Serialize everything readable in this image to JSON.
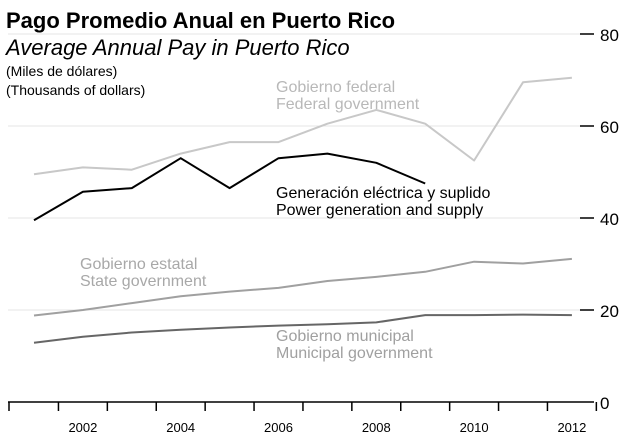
{
  "chart_data": {
    "type": "line",
    "title": "Pago Promedio Anual en Puerto Rico",
    "subtitle": "Average Annual Pay in Puerto Rico",
    "units": [
      "(Miles de dólares)",
      "(Thousands of dollars)"
    ],
    "x": [
      2001,
      2002,
      2003,
      2004,
      2005,
      2006,
      2007,
      2008,
      2009,
      2010,
      2011,
      2012
    ],
    "x_tick_labels": [
      "2002",
      "2004",
      "2006",
      "2008",
      "2010",
      "2012"
    ],
    "y_tick_labels": [
      "0",
      "20",
      "40",
      "60",
      "80"
    ],
    "ylim": [
      0,
      80
    ],
    "grid": true,
    "series": [
      {
        "name": "Gobierno federal",
        "name_en": "Federal government",
        "color": "#c8c8c8",
        "values": [
          49.5,
          51,
          50.5,
          54,
          56.5,
          56.5,
          60.5,
          63.5,
          60.5,
          52.5,
          69.5,
          70.5
        ]
      },
      {
        "name": "Generación eléctrica y suplido",
        "name_en": "Power generation and supply",
        "color": "#000000",
        "values": [
          39.5,
          45.7,
          46.5,
          53,
          46.5,
          53,
          54,
          52,
          47.5,
          null,
          null,
          null
        ]
      },
      {
        "name": "Gobierno estatal",
        "name_en": "State government",
        "color": "#a0a0a0",
        "values": [
          18.8,
          20,
          21.5,
          23,
          24,
          24.8,
          26.3,
          27.2,
          28.3,
          30.5,
          30.1,
          31.1
        ]
      },
      {
        "name": "Gobierno municipal",
        "name_en": "Municipal government",
        "color": "#666666",
        "values": [
          12.9,
          14.2,
          15.1,
          15.7,
          16.2,
          16.6,
          16.9,
          17.3,
          18.9,
          18.9,
          19,
          18.9
        ]
      }
    ]
  }
}
